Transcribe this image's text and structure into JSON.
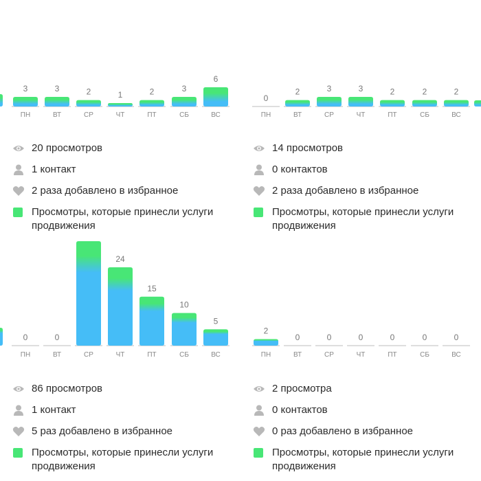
{
  "colors": {
    "blue": "#45bdf7",
    "green": "#48e676",
    "axis": "#dedede",
    "label": "#888888",
    "value": "#777777",
    "icon": "#b8b8b8"
  },
  "icons": {
    "views": "eye-icon",
    "contacts": "person-icon",
    "favorites": "heart-icon",
    "promo": "green-square"
  },
  "chart_data": [
    {
      "type": "bar",
      "categories": [
        "ПН",
        "ВТ",
        "СР",
        "ЧТ",
        "ПТ",
        "СБ",
        "ВС"
      ],
      "values": [
        3,
        3,
        2,
        1,
        2,
        3,
        6
      ],
      "ylim": [
        0,
        6
      ],
      "stats": {
        "views": "20 просмотров",
        "contacts": "1 контакт",
        "favorites": "2 раза добавлено в избранное",
        "promo": "Просмотры, которые принесли услуги продвижения"
      }
    },
    {
      "type": "bar",
      "categories": [
        "ПН",
        "ВТ",
        "СР",
        "ЧТ",
        "ПТ",
        "СБ",
        "ВС"
      ],
      "values": [
        0,
        2,
        3,
        3,
        2,
        2,
        2
      ],
      "ylim": [
        0,
        6
      ],
      "stats": {
        "views": "14 просмотров",
        "contacts": "0 контактов",
        "favorites": "2 раза добавлено в избранное",
        "promo": "Просмотры, которые принесли услуги продвижения"
      }
    },
    {
      "type": "bar",
      "categories": [
        "ПН",
        "ВТ",
        "СР",
        "ЧТ",
        "ПТ",
        "СБ",
        "ВС"
      ],
      "values": [
        0,
        0,
        32,
        24,
        15,
        10,
        5
      ],
      "ylim": [
        0,
        32
      ],
      "stats": {
        "views": "86 просмотров",
        "contacts": "1 контакт",
        "favorites": "5 раз добавлено в избранное",
        "promo": "Просмотры, которые принесли услуги продвижения"
      }
    },
    {
      "type": "bar",
      "categories": [
        "ПН",
        "ВТ",
        "СР",
        "ЧТ",
        "ПТ",
        "СБ",
        "ВС"
      ],
      "values": [
        2,
        0,
        0,
        0,
        0,
        0,
        0
      ],
      "ylim": [
        0,
        32
      ],
      "stats": {
        "views": "2 просмотра",
        "contacts": "0 контактов",
        "favorites": "0 раз добавлено в избранное",
        "promo": "Просмотры, которые принесли услуги продвижения"
      }
    }
  ]
}
